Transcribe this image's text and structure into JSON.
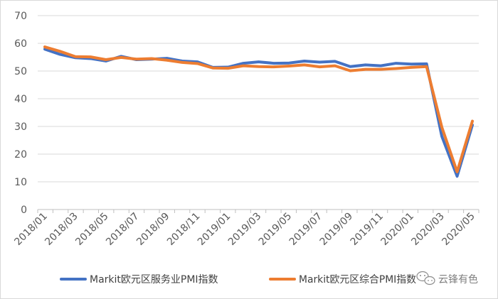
{
  "chart_data": {
    "type": "line",
    "title": "",
    "xlabel": "",
    "ylabel": "",
    "ylim": [
      0,
      70
    ],
    "yticks": [
      0,
      10,
      20,
      30,
      40,
      50,
      60,
      70
    ],
    "x": [
      "2018/01",
      "2018/02",
      "2018/03",
      "2018/04",
      "2018/05",
      "2018/06",
      "2018/07",
      "2018/08",
      "2018/09",
      "2018/10",
      "2018/11",
      "2018/12",
      "2019/01",
      "2019/02",
      "2019/03",
      "2019/04",
      "2019/05",
      "2019/06",
      "2019/07",
      "2019/08",
      "2019/09",
      "2019/10",
      "2019/11",
      "2019/12",
      "2020/01",
      "2020/02",
      "2020/03",
      "2020/04",
      "2020/05"
    ],
    "xtick_labels": [
      "2018/01",
      "2018/03",
      "2018/05",
      "2018/07",
      "2018/09",
      "2018/11",
      "2019/01",
      "2019/03",
      "2019/05",
      "2019/07",
      "2019/09",
      "2019/11",
      "2020/01",
      "2020/03",
      "2020/05"
    ],
    "grid": "horizontal",
    "legend_position": "bottom",
    "series": [
      {
        "name": "Markit欧元区服务业PMI指数",
        "color": "#4472c4",
        "values": [
          57.9,
          56.0,
          54.8,
          54.5,
          53.6,
          55.3,
          54.1,
          54.3,
          54.6,
          53.6,
          53.3,
          51.3,
          51.4,
          52.8,
          53.3,
          52.8,
          52.9,
          53.6,
          53.2,
          53.5,
          51.6,
          52.2,
          51.9,
          52.8,
          52.5,
          52.6,
          26.4,
          12.0,
          30.5
        ]
      },
      {
        "name": "Markit欧元区综合PMI指数",
        "color": "#ed7d31",
        "values": [
          58.7,
          57.1,
          55.2,
          55.1,
          54.1,
          54.9,
          54.3,
          54.5,
          53.9,
          53.1,
          52.7,
          51.1,
          51.0,
          51.9,
          51.6,
          51.5,
          51.8,
          52.2,
          51.5,
          51.9,
          50.1,
          50.6,
          50.6,
          50.9,
          51.3,
          51.6,
          29.7,
          13.6,
          31.9
        ]
      }
    ]
  },
  "watermark": {
    "text": "云锋有色",
    "icon": "wechat-icon"
  }
}
